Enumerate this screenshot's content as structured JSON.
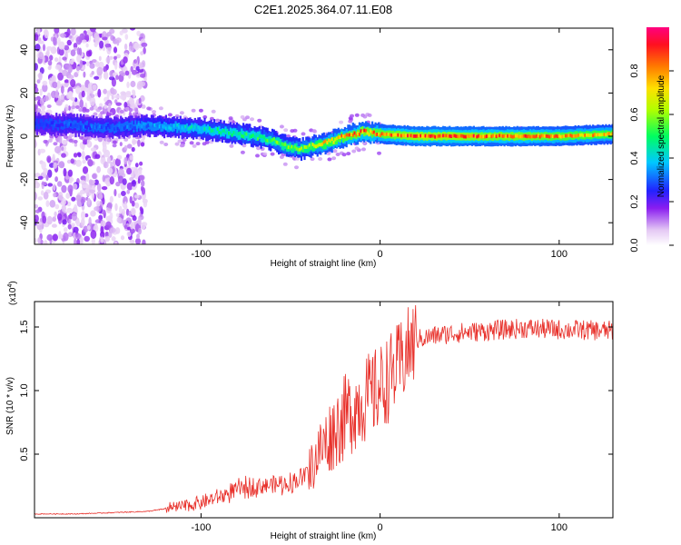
{
  "page_title": "C2E1.2025.364.07.11.E08",
  "chart_data": [
    {
      "type": "heatmap",
      "title": "C2E1.2025.364.07.11.E08",
      "xlabel": "Height of straight line (km)",
      "ylabel": "Frequency (Hz)",
      "xlim": [
        -193,
        130
      ],
      "ylim": [
        -50,
        50
      ],
      "xticks": [
        -100,
        0,
        100
      ],
      "yticks": [
        -40,
        -20,
        0,
        20,
        40
      ],
      "colorbar": {
        "label": "Normalized spectral amplitude",
        "range": [
          0,
          1
        ],
        "ticks": [
          "0.0",
          "0.2",
          "0.4",
          "0.6",
          "0.8"
        ]
      },
      "ridge": {
        "x": [
          -193,
          -170,
          -150,
          -130,
          -110,
          -95,
          -80,
          -70,
          -60,
          -52,
          -45,
          -40,
          -30,
          -20,
          -10,
          0,
          20,
          40,
          60,
          80,
          100,
          130
        ],
        "freq": [
          6,
          5,
          4,
          5,
          4,
          3,
          1,
          0,
          -2,
          -5,
          -6,
          -5,
          -3,
          0,
          2,
          1,
          0,
          0,
          0,
          0,
          0,
          1
        ],
        "amplitude": [
          0.25,
          0.3,
          0.3,
          0.35,
          0.4,
          0.45,
          0.5,
          0.5,
          0.55,
          0.6,
          0.6,
          0.65,
          0.75,
          0.8,
          0.85,
          0.8,
          0.9,
          0.9,
          0.85,
          0.85,
          0.8,
          0.75
        ]
      }
    },
    {
      "type": "line",
      "xlabel": "Height of straight line (km)",
      "ylabel": "SNR (10 * v/v)",
      "y_multiplier": "(x10",
      "y_exponent": "4",
      "y_multiplier_close": ")",
      "xlim": [
        -193,
        130
      ],
      "ylim": [
        0,
        1.7
      ],
      "xticks": [
        -100,
        0,
        100
      ],
      "yticks": [
        "0.5",
        "1.0",
        "1.5"
      ],
      "color": "#e8302a",
      "series": [
        {
          "name": "SNR",
          "x": [
            -193,
            -170,
            -150,
            -130,
            -120,
            -110,
            -100,
            -90,
            -80,
            -70,
            -60,
            -50,
            -40,
            -35,
            -30,
            -25,
            -20,
            -15,
            -10,
            -5,
            0,
            5,
            10,
            15,
            20,
            30,
            40,
            60,
            80,
            100,
            130
          ],
          "values": [
            0.03,
            0.03,
            0.04,
            0.05,
            0.07,
            0.09,
            0.12,
            0.16,
            0.22,
            0.25,
            0.26,
            0.27,
            0.35,
            0.5,
            0.6,
            0.7,
            0.78,
            0.86,
            0.92,
            0.96,
            1.02,
            1.1,
            1.18,
            1.3,
            1.4,
            1.43,
            1.45,
            1.47,
            1.49,
            1.48,
            1.47
          ]
        }
      ]
    }
  ],
  "colors": {
    "line": "#e8302a",
    "heat_background": "#ffffff"
  }
}
